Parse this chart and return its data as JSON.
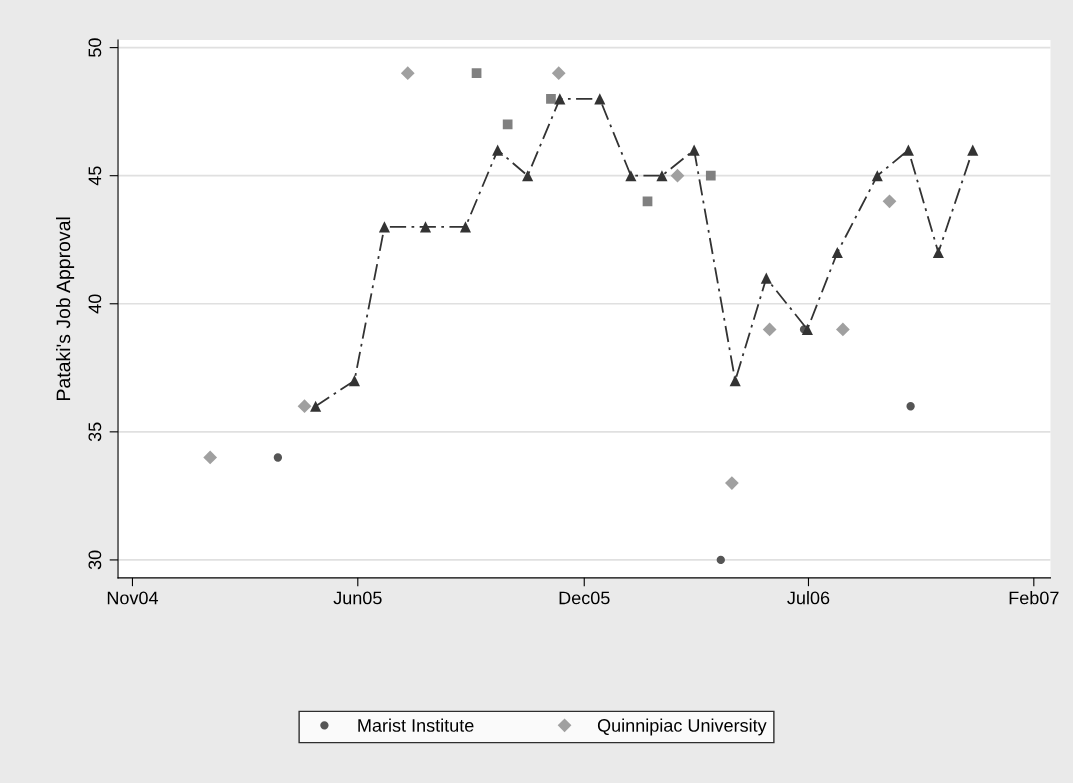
{
  "chart_data": {
    "type": "scatter",
    "ylabel": "Pataki's Job Approval",
    "xlim": [
      "2004-11-02",
      "2007-02-20"
    ],
    "ylim": [
      29.3,
      50.3
    ],
    "xticks": [
      {
        "value": "2004-11-15",
        "label": "Nov04"
      },
      {
        "value": "2005-06-06",
        "label": "Jun05"
      },
      {
        "value": "2005-12-27",
        "label": "Dec05"
      },
      {
        "value": "2006-07-17",
        "label": "Jul06"
      },
      {
        "value": "2007-02-05",
        "label": "Feb07"
      }
    ],
    "yticks": [
      30,
      35,
      40,
      45,
      50
    ],
    "grid": "y",
    "legend": "bottom",
    "series": [
      {
        "name": "Marist Institute",
        "marker": "circle",
        "color": "#555555",
        "x": [
          "2005-03-26",
          "2006-04-29",
          "2006-07-13",
          "2006-10-17"
        ],
        "values": [
          34,
          30,
          39,
          36
        ]
      },
      {
        "name": "Quinnipiac University",
        "marker": "diamond",
        "color": "#a0a0a0",
        "x": [
          "2005-01-24",
          "2005-04-19",
          "2005-07-21",
          "2005-12-04",
          "2006-03-21",
          "2006-05-09",
          "2006-06-12",
          "2006-08-17",
          "2006-09-28"
        ],
        "values": [
          34,
          36,
          49,
          49,
          45,
          33,
          39,
          39,
          44
        ]
      },
      {
        "marker": "square",
        "color": "#808080",
        "x": [
          "2005-09-21",
          "2005-10-19",
          "2005-11-27",
          "2006-02-22",
          "2006-04-20"
        ],
        "values": [
          49,
          47,
          48,
          44,
          45
        ]
      },
      {
        "type": "line",
        "marker": "triangle",
        "line_style": "dashed",
        "color": "#333333",
        "x": [
          "2005-04-29",
          "2005-06-03",
          "2005-06-30",
          "2005-08-06",
          "2005-09-11",
          "2005-10-10",
          "2005-11-06",
          "2005-12-05",
          "2006-01-10",
          "2006-02-07",
          "2006-03-07",
          "2006-04-05",
          "2006-05-12",
          "2006-06-09",
          "2006-07-16",
          "2006-08-12",
          "2006-09-17",
          "2006-10-15",
          "2006-11-11",
          "2006-12-12"
        ],
        "values": [
          36,
          37,
          43,
          43,
          43,
          46,
          45,
          48,
          48,
          45,
          45,
          46,
          37,
          41,
          39,
          42,
          45,
          46,
          42,
          46
        ]
      }
    ]
  }
}
